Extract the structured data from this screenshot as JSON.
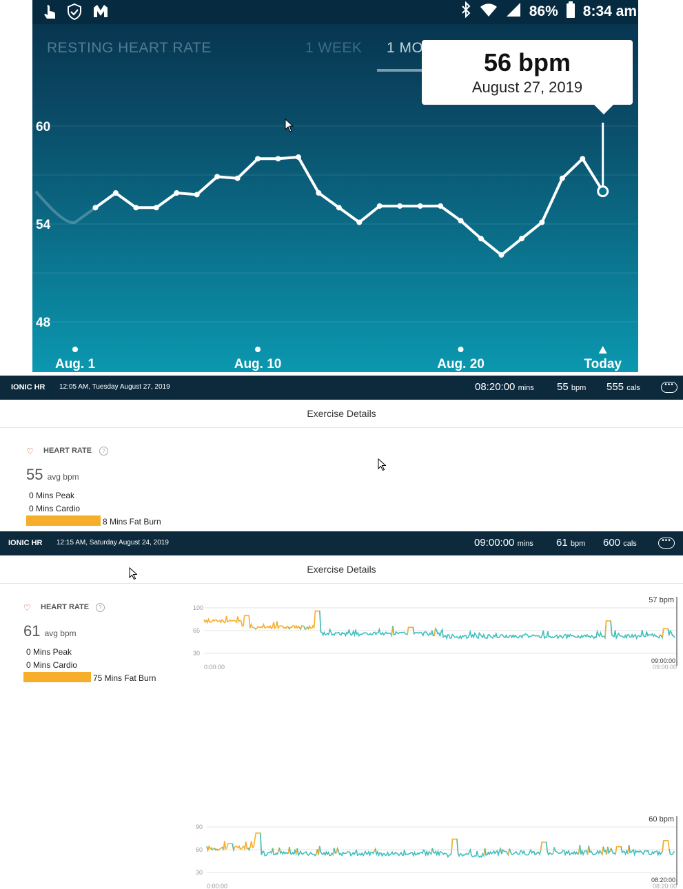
{
  "status_bar": {
    "battery": "86%",
    "time": "8:34 am",
    "left_icons": [
      "touch-icon",
      "shield-check-icon",
      "malwarebytes-icon"
    ],
    "right_icons": [
      "bluetooth-icon",
      "wifi-icon",
      "signal-icon",
      "battery-icon"
    ]
  },
  "phone": {
    "title": "RESTING HEART RATE",
    "tabs": [
      "1 WEEK",
      "1 MO"
    ],
    "tooltip": {
      "value": "56 bpm",
      "date": "August 27, 2019"
    },
    "colors": {
      "background_top": "#07304a",
      "background_bottom": "#0b98b0",
      "line": "#ffffff"
    }
  },
  "chart_data": [
    {
      "type": "line",
      "title": "",
      "y_ticks": [
        "60",
        "54",
        "48"
      ],
      "ylim": [
        47,
        62
      ],
      "x_ticks": [
        "Aug. 1",
        "Aug. 10",
        "Aug. 20",
        "Today"
      ],
      "x_tick_days": [
        1,
        10,
        20,
        27
      ],
      "x": [
        2,
        3,
        4,
        5,
        6,
        7,
        8,
        9,
        10,
        11,
        12,
        13,
        14,
        15,
        16,
        17,
        18,
        19,
        20,
        21,
        22,
        23,
        24,
        25,
        26,
        27
      ],
      "y": [
        55.0,
        55.9,
        55.0,
        55.0,
        55.9,
        55.8,
        56.9,
        56.8,
        58.0,
        58.0,
        58.1,
        55.9,
        55.0,
        54.1,
        55.1,
        55.1,
        55.1,
        55.1,
        54.2,
        53.1,
        52.1,
        53.1,
        54.1,
        56.8,
        58.0,
        56.0
      ],
      "faded_point": {
        "x": 1,
        "y": 54.1
      },
      "selected": {
        "x": 27,
        "y": 56,
        "label": "56 bpm"
      },
      "grid": true
    },
    {
      "type": "line",
      "y_ticks": [
        "90",
        "60",
        "30"
      ],
      "ylim": [
        30,
        90
      ],
      "x_start_label": "0:00:00",
      "x_end_label": "08:20:00",
      "x_end_label_faint": "08:20:00",
      "current_label": "60 bpm",
      "fat_burn_threshold": 60,
      "colors": {
        "normal": "#3fbfbe",
        "fat_burn": "#f7ae2b"
      }
    },
    {
      "type": "line",
      "y_ticks": [
        "100",
        "65",
        "30"
      ],
      "ylim": [
        30,
        100
      ],
      "x_start_label": "0:00:00",
      "x_end_label": "09:00:00",
      "x_end_label_faint": "09:00:00",
      "current_label": "57 bpm",
      "fat_burn_threshold": 68,
      "colors": {
        "normal": "#3fbfbe",
        "fat_burn": "#f7ae2b"
      }
    }
  ],
  "exercises": [
    {
      "device": "IONIC HR",
      "datetime": "12:05 AM, Tuesday August 27, 2019",
      "duration": "08:20:00",
      "duration_unit": "mins",
      "bpm": "55",
      "bpm_unit": "bpm",
      "cals": "555",
      "cals_unit": "cals",
      "section_title": "Exercise Details",
      "hr_label": "HEART RATE",
      "avg": "55",
      "avg_unit": "avg bpm",
      "peak": "0 Mins Peak",
      "cardio": "0 Mins Cardio",
      "fat_burn": "8 Mins Fat Burn",
      "fat_burn_minutes": 8
    },
    {
      "device": "IONIC HR",
      "datetime": "12:15 AM, Saturday August 24, 2019",
      "duration": "09:00:00",
      "duration_unit": "mins",
      "bpm": "61",
      "bpm_unit": "bpm",
      "cals": "600",
      "cals_unit": "cals",
      "section_title": "Exercise Details",
      "hr_label": "HEART RATE",
      "avg": "61",
      "avg_unit": "avg bpm",
      "peak": "0 Mins Peak",
      "cardio": "0 Mins Cardio",
      "fat_burn": "75 Mins Fat Burn",
      "fat_burn_minutes": 75
    }
  ]
}
